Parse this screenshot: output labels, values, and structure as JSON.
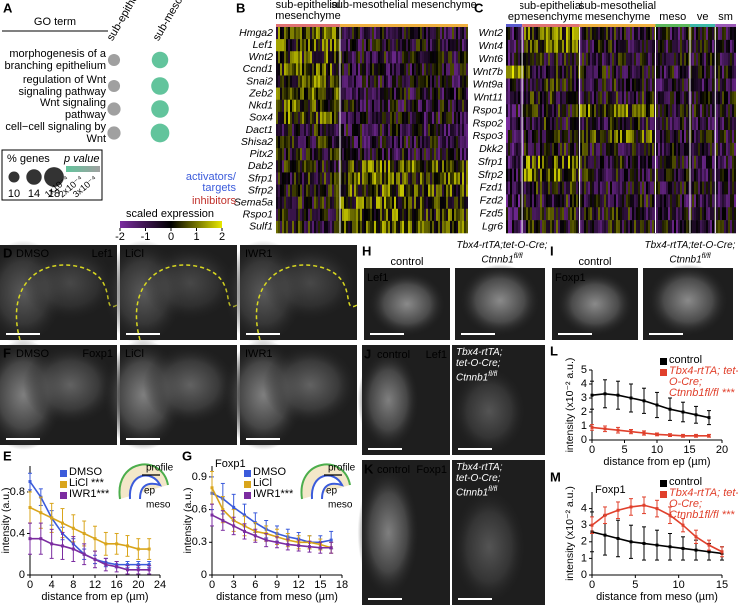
{
  "chart_data": [
    {
      "type": "dot",
      "label": "A",
      "header": "GO term",
      "categories": [
        "morphogenesis of a branching epithelium",
        "regulation of Wnt signaling pathway",
        "Wnt signaling pathway",
        "cell−cell signaling by Wnt"
      ],
      "series": [
        {
          "name": "sub-epithelial",
          "color": "#a0a0a0",
          "values": [
            11,
            11,
            12,
            12
          ]
        },
        {
          "name": "sub-mesothelial",
          "color": "#62c49c",
          "values": [
            15,
            16,
            16,
            17
          ]
        }
      ],
      "size_title": "% genes",
      "size_ticks": [
        10,
        14,
        18
      ],
      "color_title": "p value",
      "color_ticks": [
        "1x10⁻⁴",
        "2x10⁻⁴",
        "3x10⁻⁴"
      ],
      "color_scale": [
        "#62c49c",
        "#a0a0a0"
      ]
    },
    {
      "type": "line",
      "label": "E",
      "x": [
        0,
        2,
        4,
        6,
        8,
        10,
        12,
        14,
        16,
        18,
        20,
        22
      ],
      "xlim": [
        0,
        24
      ],
      "xticks": [
        0,
        4,
        8,
        12,
        16,
        20,
        24
      ],
      "ylim": [
        0,
        1.05
      ],
      "yticks": [
        0,
        0.4,
        0.8
      ],
      "xlabel": "distance from ep (µm)",
      "ylabel": "intensity (a.u.)",
      "inset": {
        "ep": "ep",
        "profile": "profile",
        "meso": "meso"
      },
      "series": [
        {
          "name": "DMSO",
          "color": "#3b5bdb",
          "values": [
            0.9,
            0.75,
            0.55,
            0.4,
            0.3,
            0.2,
            0.15,
            0.12,
            0.1,
            0.1,
            0.1,
            0.1
          ],
          "errors": [
            0.08,
            0.08,
            0.07,
            0.06,
            0.05,
            0.05,
            0.04,
            0.04,
            0.03,
            0.03,
            0.03,
            0.03
          ]
        },
        {
          "name": "LiCl ***",
          "color": "#d9a51c",
          "values": [
            0.65,
            0.6,
            0.55,
            0.5,
            0.45,
            0.4,
            0.35,
            0.3,
            0.3,
            0.28,
            0.25,
            0.25
          ],
          "errors": [
            0.15,
            0.15,
            0.14,
            0.14,
            0.13,
            0.12,
            0.12,
            0.11,
            0.1,
            0.1,
            0.1,
            0.1
          ]
        },
        {
          "name": "IWR1***",
          "color": "#7b2ca0",
          "values": [
            0.35,
            0.35,
            0.3,
            0.28,
            0.25,
            0.2,
            0.15,
            0.1,
            0.08,
            0.05,
            0.05,
            0.05
          ],
          "errors": [
            0.15,
            0.15,
            0.14,
            0.13,
            0.12,
            0.1,
            0.08,
            0.06,
            0.05,
            0.04,
            0.04,
            0.04
          ]
        }
      ]
    },
    {
      "type": "line",
      "label": "G",
      "title": "Foxp1",
      "x": [
        0,
        1.5,
        3,
        4.5,
        6,
        7.5,
        9,
        10.5,
        12,
        13.5,
        15,
        16.5
      ],
      "xlim": [
        0,
        18
      ],
      "xticks": [
        0,
        3,
        6,
        9,
        12,
        15,
        18
      ],
      "ylim": [
        0,
        1.0
      ],
      "yticks": [
        0,
        0.3,
        0.6,
        0.9
      ],
      "xlabel": "distance from meso (µm)",
      "ylabel": "intensity (a.u.)",
      "inset": {
        "ep": "ep",
        "profile": "profile",
        "meso": "meso"
      },
      "series": [
        {
          "name": "DMSO",
          "color": "#3b5bdb",
          "values": [
            0.75,
            0.7,
            0.62,
            0.55,
            0.48,
            0.42,
            0.38,
            0.35,
            0.33,
            0.3,
            0.3,
            0.32
          ],
          "errors": [
            0.15,
            0.14,
            0.12,
            0.1,
            0.09,
            0.08,
            0.07,
            0.07,
            0.06,
            0.06,
            0.06,
            0.08
          ]
        },
        {
          "name": "LiCl",
          "color": "#d9a51c",
          "values": [
            0.8,
            0.6,
            0.5,
            0.45,
            0.4,
            0.38,
            0.35,
            0.32,
            0.3,
            0.3,
            0.28,
            0.25
          ],
          "errors": [
            0.15,
            0.12,
            0.1,
            0.09,
            0.08,
            0.07,
            0.07,
            0.06,
            0.06,
            0.06,
            0.05,
            0.05
          ]
        },
        {
          "name": "IWR1***",
          "color": "#7b2ca0",
          "values": [
            0.55,
            0.5,
            0.45,
            0.4,
            0.36,
            0.32,
            0.3,
            0.28,
            0.27,
            0.26,
            0.25,
            0.25
          ],
          "errors": [
            0.1,
            0.09,
            0.08,
            0.07,
            0.06,
            0.06,
            0.05,
            0.05,
            0.05,
            0.05,
            0.05,
            0.05
          ]
        }
      ]
    },
    {
      "type": "line",
      "label": "L",
      "x": [
        0,
        2,
        4,
        6,
        8,
        10,
        12,
        14,
        16,
        18
      ],
      "xlim": [
        0,
        20
      ],
      "xticks": [
        0,
        5,
        10,
        15,
        20
      ],
      "ylim": [
        0,
        5
      ],
      "yticks": [
        0,
        1,
        2,
        3,
        4,
        5
      ],
      "xlabel": "distance from ep (µm)",
      "ylabel": "intensity (x10⁻² a.u.)",
      "series": [
        {
          "name": "control",
          "color": "#000000",
          "values": [
            3.2,
            3.3,
            3.2,
            3.0,
            2.8,
            2.5,
            2.2,
            2.0,
            1.8,
            1.6
          ],
          "errors": [
            1.0,
            1.0,
            1.0,
            1.0,
            0.9,
            0.9,
            0.8,
            0.7,
            0.6,
            0.5
          ]
        },
        {
          "name": "Tbx4-rtTA; tet-O-Cre; Ctnnb1fl/fl ***",
          "color": "#e0402c",
          "values": [
            0.9,
            0.8,
            0.7,
            0.6,
            0.5,
            0.4,
            0.35,
            0.3,
            0.3,
            0.3
          ],
          "errors": [
            0.2,
            0.2,
            0.2,
            0.15,
            0.15,
            0.1,
            0.1,
            0.1,
            0.1,
            0.1
          ]
        }
      ]
    },
    {
      "type": "line",
      "label": "M",
      "title": "Foxp1",
      "x": [
        0,
        1.5,
        3,
        4.5,
        6,
        7.5,
        9,
        10.5,
        12,
        13.5,
        15
      ],
      "xlim": [
        0,
        15
      ],
      "xticks": [
        0,
        5,
        10,
        15
      ],
      "ylim": [
        0,
        5
      ],
      "yticks": [
        0,
        1,
        2,
        3,
        4
      ],
      "xlabel": "distance from meso (µm)",
      "ylabel": "intensity (x10⁻² a.u.)",
      "series": [
        {
          "name": "control",
          "color": "#000000",
          "values": [
            2.6,
            2.4,
            2.2,
            2.0,
            1.9,
            1.8,
            1.7,
            1.6,
            1.5,
            1.4,
            1.3
          ],
          "errors": [
            1.2,
            1.2,
            1.1,
            1.0,
            1.0,
            0.9,
            0.8,
            0.7,
            0.6,
            0.5,
            0.4
          ]
        },
        {
          "name": "Tbx4-rtTA; tet-O-Cre; Ctnnb1fl/fl ***",
          "color": "#e0402c",
          "values": [
            3.0,
            3.6,
            3.9,
            4.1,
            4.2,
            4.0,
            3.6,
            3.0,
            2.3,
            1.8,
            1.4
          ],
          "errors": [
            0.5,
            0.5,
            0.5,
            0.5,
            0.5,
            0.5,
            0.5,
            0.4,
            0.4,
            0.3,
            0.3
          ]
        }
      ]
    }
  ],
  "heatmaps": [
    {
      "label": "B",
      "groups": [
        {
          "name": "sub-epithelial mesenchyme",
          "color": "#e07272"
        },
        {
          "name": "sub-mesothelial mesenchyme",
          "color": "#f0b040"
        }
      ],
      "genes": [
        {
          "name": "Hmga2",
          "color": "#3b5bdb"
        },
        {
          "name": "Lef1",
          "color": "#3b5bdb"
        },
        {
          "name": "Wnt2",
          "color": "#3b5bdb"
        },
        {
          "name": "Ccnd1",
          "color": "#3b5bdb"
        },
        {
          "name": "Snai2",
          "color": "#3b5bdb"
        },
        {
          "name": "Zeb2",
          "color": "#3b5bdb"
        },
        {
          "name": "Nkd1",
          "color": "#3b5bdb"
        },
        {
          "name": "Sox4",
          "color": "#3b5bdb"
        },
        {
          "name": "Dact1",
          "color": "#c0302a"
        },
        {
          "name": "Shisa2",
          "color": "#c0302a"
        },
        {
          "name": "Pitx2",
          "color": "#3b5bdb"
        },
        {
          "name": "Dab2",
          "color": "#c0302a"
        },
        {
          "name": "Sfrp1",
          "color": "#c0302a"
        },
        {
          "name": "Sfrp2",
          "color": "#c0302a"
        },
        {
          "name": "Sema5a",
          "color": "#c0302a"
        },
        {
          "name": "Rspo1",
          "color": "#3b5bdb"
        },
        {
          "name": "Sulf1",
          "color": "#c0302a"
        }
      ],
      "legend": [
        {
          "text": "activators/ targets",
          "color": "#3b5bdb"
        },
        {
          "text": "inhibitors",
          "color": "#c0302a"
        }
      ],
      "colorbar": {
        "title": "scaled expression",
        "ticks": [
          -2,
          -1,
          0,
          1,
          2
        ],
        "colors": [
          "#7b2ca0",
          "#000000",
          "#e8e800"
        ]
      }
    },
    {
      "label": "C",
      "groups": [
        {
          "name": "ep",
          "color": "#5a5acd"
        },
        {
          "name": "sub-epithelial mesenchyme",
          "color": "#e07272"
        },
        {
          "name": "sub-mesothelial mesenchyme",
          "color": "#f0b040"
        },
        {
          "name": "meso",
          "color": "#5cb85c"
        },
        {
          "name": "ve",
          "color": "#3cb8a8"
        },
        {
          "name": "sm",
          "color": "#9b59b6"
        }
      ],
      "genes": [
        {
          "name": "Wnt2"
        },
        {
          "name": "Wnt4"
        },
        {
          "name": "Wnt6"
        },
        {
          "name": "Wnt7b"
        },
        {
          "name": "Wnt9a"
        },
        {
          "name": "Wnt11"
        },
        {
          "name": "Rspo1"
        },
        {
          "name": "Rspo2"
        },
        {
          "name": "Rspo3"
        },
        {
          "name": "Dkk2"
        },
        {
          "name": "Sfrp1"
        },
        {
          "name": "Sfrp2"
        },
        {
          "name": "Fzd1"
        },
        {
          "name": "Fzd2"
        },
        {
          "name": "Fzd5"
        },
        {
          "name": "Lgr6"
        }
      ]
    }
  ],
  "images": [
    {
      "label": "D",
      "panels": [
        {
          "title": "DMSO",
          "marker": "Lef1"
        },
        {
          "title": "LiCl"
        },
        {
          "title": "IWR1"
        }
      ]
    },
    {
      "label": "F",
      "panels": [
        {
          "title": "DMSO",
          "marker": "Foxp1"
        },
        {
          "title": "LiCl"
        },
        {
          "title": "IWR1"
        }
      ]
    },
    {
      "label": "H",
      "control": "control",
      "genotype": [
        "Tbx4-rtTA;tet-O-Cre;",
        "Ctnnb1"
      ],
      "genotype_sup": "fl/fl",
      "marker": "Lef1"
    },
    {
      "label": "I",
      "control": "control",
      "genotype": [
        "Tbx4-rtTA;tet-O-Cre;",
        "Ctnnb1"
      ],
      "genotype_sup": "fl/fl",
      "marker": "Foxp1"
    },
    {
      "label": "J",
      "control": "control",
      "genotype": [
        "Tbx4-rtTA;",
        "tet-O-Cre;",
        "Ctnnb1"
      ],
      "genotype_sup": "fl/fl",
      "marker": "Lef1"
    },
    {
      "label": "K",
      "control": "control",
      "genotype": [
        "Tbx4-rtTA;",
        "tet-O-Cre;",
        "Ctnnb1"
      ],
      "genotype_sup": "fl/fl",
      "marker": "Foxp1"
    }
  ]
}
